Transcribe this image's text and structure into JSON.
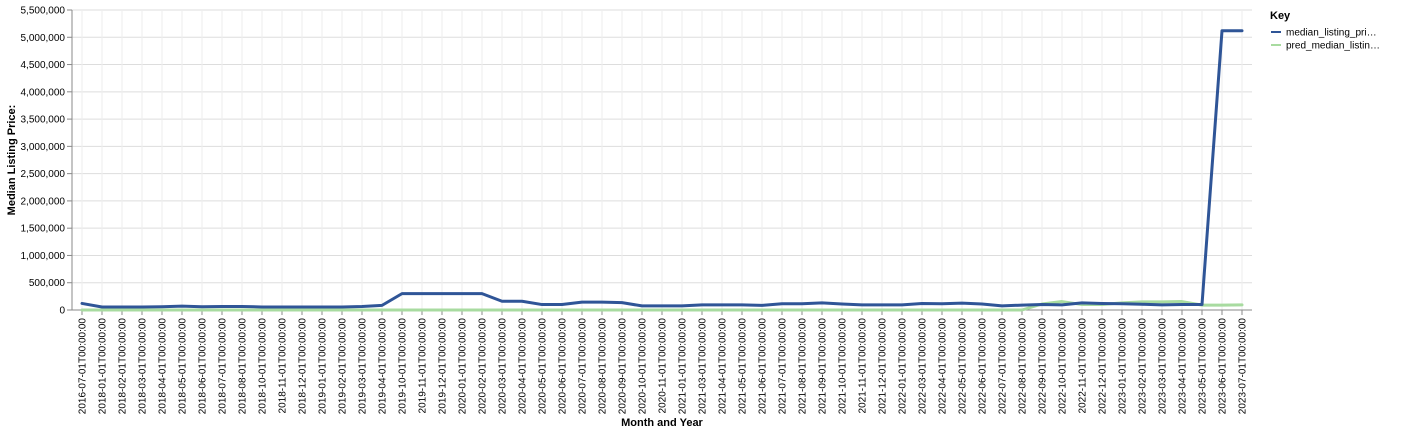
{
  "chart_data": {
    "type": "line",
    "xlabel": "Month and Year",
    "ylabel": "Median Listing Price:",
    "ylim": [
      0,
      5500000
    ],
    "y_ticks": [
      "0",
      "500,000",
      "1,000,000",
      "1,500,000",
      "2,000,000",
      "2,500,000",
      "3,000,000",
      "3,500,000",
      "4,000,000",
      "4,500,000",
      "5,000,000",
      "5,500,000"
    ],
    "y_tick_values": [
      0,
      500000,
      1000000,
      1500000,
      2000000,
      2500000,
      3000000,
      3500000,
      4000000,
      4500000,
      5000000,
      5500000
    ],
    "grid": true,
    "legend_position": "top-right",
    "legend_title": "Key",
    "categories": [
      "2016-07-01T00:00:00",
      "2018-01-01T00:00:00",
      "2018-02-01T00:00:00",
      "2018-03-01T00:00:00",
      "2018-04-01T00:00:00",
      "2018-05-01T00:00:00",
      "2018-06-01T00:00:00",
      "2018-07-01T00:00:00",
      "2018-08-01T00:00:00",
      "2018-10-01T00:00:00",
      "2018-11-01T00:00:00",
      "2018-12-01T00:00:00",
      "2019-01-01T00:00:00",
      "2019-02-01T00:00:00",
      "2019-03-01T00:00:00",
      "2019-04-01T00:00:00",
      "2019-10-01T00:00:00",
      "2019-11-01T00:00:00",
      "2019-12-01T00:00:00",
      "2020-01-01T00:00:00",
      "2020-02-01T00:00:00",
      "2020-03-01T00:00:00",
      "2020-04-01T00:00:00",
      "2020-05-01T00:00:00",
      "2020-06-01T00:00:00",
      "2020-07-01T00:00:00",
      "2020-08-01T00:00:00",
      "2020-09-01T00:00:00",
      "2020-10-01T00:00:00",
      "2020-11-01T00:00:00",
      "2021-01-01T00:00:00",
      "2021-03-01T00:00:00",
      "2021-04-01T00:00:00",
      "2021-05-01T00:00:00",
      "2021-06-01T00:00:00",
      "2021-07-01T00:00:00",
      "2021-08-01T00:00:00",
      "2021-09-01T00:00:00",
      "2021-10-01T00:00:00",
      "2021-11-01T00:00:00",
      "2021-12-01T00:00:00",
      "2022-01-01T00:00:00",
      "2022-03-01T00:00:00",
      "2022-04-01T00:00:00",
      "2022-05-01T00:00:00",
      "2022-06-01T00:00:00",
      "2022-07-01T00:00:00",
      "2022-08-01T00:00:00",
      "2022-09-01T00:00:00",
      "2022-10-01T00:00:00",
      "2022-11-01T00:00:00",
      "2022-12-01T00:00:00",
      "2023-01-01T00:00:00",
      "2023-02-01T00:00:00",
      "2023-03-01T00:00:00",
      "2023-04-01T00:00:00",
      "2023-05-01T00:00:00",
      "2023-06-01T00:00:00",
      "2023-07-01T00:00:00"
    ],
    "series": [
      {
        "name": "median_listing_pri…",
        "color": "#2f5597",
        "values": [
          120000,
          55000,
          55000,
          55000,
          60000,
          70000,
          60000,
          65000,
          65000,
          55000,
          55000,
          55000,
          55000,
          55000,
          65000,
          85000,
          300000,
          300000,
          300000,
          300000,
          300000,
          160000,
          160000,
          100000,
          100000,
          145000,
          145000,
          135000,
          75000,
          75000,
          75000,
          95000,
          95000,
          95000,
          85000,
          115000,
          115000,
          130000,
          110000,
          95000,
          95000,
          95000,
          120000,
          115000,
          125000,
          110000,
          75000,
          90000,
          100000,
          95000,
          130000,
          120000,
          115000,
          105000,
          95000,
          100000,
          100000,
          5120000,
          5120000
        ]
      },
      {
        "name": "pred_median_listin…",
        "color": "#a8dba0",
        "values": [
          0,
          0,
          0,
          0,
          0,
          0,
          0,
          0,
          0,
          0,
          0,
          0,
          0,
          0,
          0,
          0,
          0,
          0,
          0,
          0,
          0,
          0,
          0,
          0,
          0,
          0,
          0,
          0,
          0,
          0,
          0,
          0,
          0,
          0,
          0,
          0,
          0,
          0,
          0,
          0,
          0,
          0,
          0,
          0,
          0,
          0,
          0,
          0,
          110000,
          155000,
          100000,
          100000,
          130000,
          150000,
          150000,
          155000,
          90000,
          90000,
          95000
        ]
      }
    ]
  }
}
